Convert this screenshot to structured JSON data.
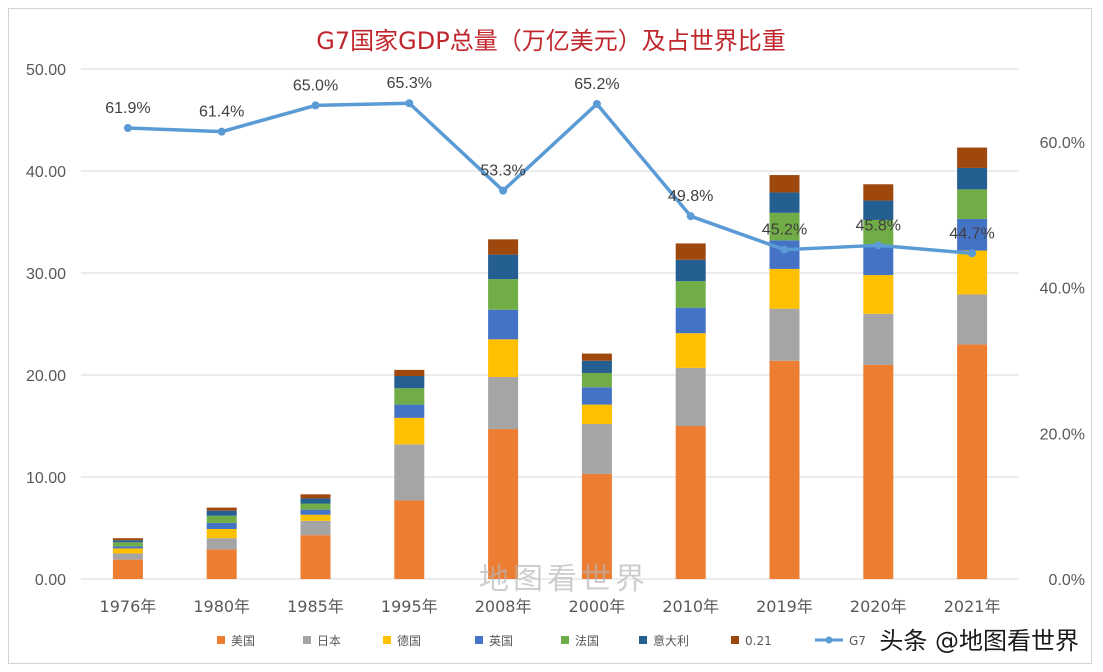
{
  "chart_data": {
    "type": "bar",
    "title": "G7国家GDP总量（万亿美元）及占世界比重",
    "categories": [
      "1976年",
      "1980年",
      "1985年",
      "1995年",
      "2008年",
      "2000年",
      "2010年",
      "2019年",
      "2020年",
      "2021年"
    ],
    "ylim": [
      0,
      50
    ],
    "y_ticks": [
      "0.00",
      "10.00",
      "20.00",
      "30.00",
      "40.00",
      "50.00"
    ],
    "y2lim": [
      0,
      70
    ],
    "y2_ticks": [
      "0.0%",
      "20.0%",
      "40.0%",
      "60.0%"
    ],
    "grid": true,
    "legend_position": "bottom",
    "series": [
      {
        "name": "美国",
        "color": "#ed7d31",
        "values": [
          1.9,
          2.9,
          4.3,
          7.7,
          14.7,
          10.3,
          15.0,
          21.4,
          21.0,
          23.0
        ]
      },
      {
        "name": "日本",
        "color": "#a5a5a5",
        "values": [
          0.6,
          1.1,
          1.4,
          5.5,
          5.1,
          4.9,
          5.7,
          5.1,
          5.0,
          4.9
        ]
      },
      {
        "name": "德国",
        "color": "#ffc000",
        "values": [
          0.5,
          0.9,
          0.6,
          2.6,
          3.7,
          1.9,
          3.4,
          3.9,
          3.8,
          4.3
        ]
      },
      {
        "name": "英国",
        "color": "#4472c4",
        "values": [
          0.2,
          0.6,
          0.5,
          1.3,
          2.9,
          1.7,
          2.5,
          2.8,
          2.8,
          3.1
        ]
      },
      {
        "name": "法国",
        "color": "#70ad47",
        "values": [
          0.4,
          0.7,
          0.6,
          1.6,
          3.0,
          1.4,
          2.6,
          2.7,
          2.6,
          2.9
        ]
      },
      {
        "name": "意大利",
        "color": "#255e91",
        "values": [
          0.2,
          0.5,
          0.5,
          1.2,
          2.4,
          1.2,
          2.1,
          2.0,
          1.9,
          2.1
        ]
      },
      {
        "name": "0.21",
        "color": "#9e480e",
        "values": [
          0.2,
          0.3,
          0.4,
          0.6,
          1.5,
          0.7,
          1.6,
          1.7,
          1.6,
          2.0
        ]
      }
    ],
    "line_series": {
      "name": "G7",
      "color": "#5b9bd5",
      "values": [
        61.9,
        61.4,
        65.0,
        65.3,
        53.3,
        65.2,
        49.8,
        45.2,
        45.8,
        44.7
      ],
      "labels": [
        "61.9%",
        "61.4%",
        "65.0%",
        "65.3%",
        "53.3%",
        "65.2%",
        "49.8%",
        "45.2%",
        "45.8%",
        "44.7%"
      ]
    }
  },
  "watermark": "地图看世界",
  "credit": "头条 @地图看世界"
}
